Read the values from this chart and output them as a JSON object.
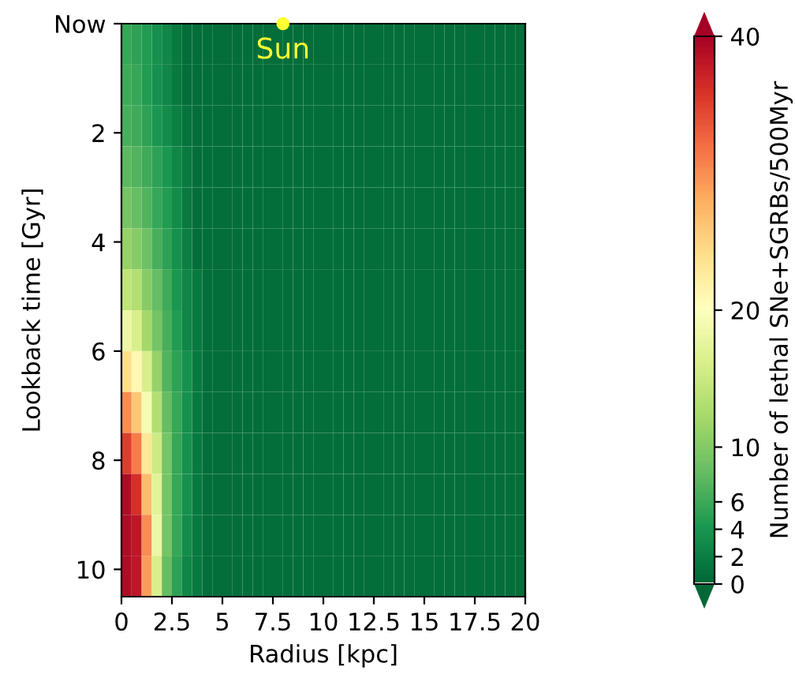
{
  "chart_data": {
    "type": "heatmap",
    "xlabel": "Radius [kpc]",
    "ylabel": "Lookback time [Gyr]",
    "clabel": "Number of lethal SNe+SGRBs/500Myr",
    "cells": [
      [
        5.5,
        5,
        4.5,
        3.5,
        2.5,
        1.5,
        0.5,
        0.5,
        0.5,
        0.5,
        0.5,
        0.5,
        0.5,
        0.5,
        0.5,
        0.5,
        0.5,
        0.5,
        0.5,
        0.5,
        0.5,
        0.5,
        0.5,
        0.5,
        0.5,
        0.5,
        0.5,
        0.5,
        0.5,
        0.5,
        0.5,
        0.5,
        0.5,
        0.5,
        0.5,
        0.5,
        0.5,
        0.5,
        0.5,
        0.5
      ],
      [
        6,
        5.5,
        4.5,
        3.5,
        2.5,
        1.5,
        0.5,
        0.5,
        0.5,
        0.5,
        0.5,
        0.5,
        0.5,
        0.5,
        0.5,
        0.5,
        0.5,
        0.5,
        0.5,
        0.5,
        0.5,
        0.5,
        0.5,
        0.5,
        0.5,
        0.5,
        0.5,
        0.5,
        0.5,
        0.5,
        0.5,
        0.5,
        0.5,
        0.5,
        0.5,
        0.5,
        0.5,
        0.5,
        0.5,
        0.5
      ],
      [
        6.5,
        6,
        5,
        4,
        3,
        2,
        1,
        0.5,
        0.5,
        0.5,
        0.5,
        0.5,
        0.5,
        0.5,
        0.5,
        0.5,
        0.5,
        0.5,
        0.5,
        0.5,
        0.5,
        0.5,
        0.5,
        0.5,
        0.5,
        0.5,
        0.5,
        0.5,
        0.5,
        0.5,
        0.5,
        0.5,
        0.5,
        0.5,
        0.5,
        0.5,
        0.5,
        0.5,
        0.5,
        0.5
      ],
      [
        7.5,
        7,
        6,
        5,
        4,
        2.5,
        1.5,
        0.5,
        0.5,
        0.5,
        0.5,
        0.5,
        0.5,
        0.5,
        0.5,
        0.5,
        0.5,
        0.5,
        0.5,
        0.5,
        0.5,
        0.5,
        0.5,
        0.5,
        0.5,
        0.5,
        0.5,
        0.5,
        0.5,
        0.5,
        0.5,
        0.5,
        0.5,
        0.5,
        0.5,
        0.5,
        0.5,
        0.5,
        0.5,
        0.5
      ],
      [
        9,
        8,
        7,
        5.5,
        4.5,
        3,
        1.5,
        0.5,
        0.5,
        0.5,
        0.5,
        0.5,
        0.5,
        0.5,
        0.5,
        0.5,
        0.5,
        0.5,
        0.5,
        0.5,
        0.5,
        0.5,
        0.5,
        0.5,
        0.5,
        0.5,
        0.5,
        0.5,
        0.5,
        0.5,
        0.5,
        0.5,
        0.5,
        0.5,
        0.5,
        0.5,
        0.5,
        0.5,
        0.5,
        0.5
      ],
      [
        11,
        10,
        8.5,
        6.5,
        5,
        3.5,
        2,
        0.5,
        0.5,
        0.5,
        0.5,
        0.5,
        0.5,
        0.5,
        0.5,
        0.5,
        0.5,
        0.5,
        0.5,
        0.5,
        0.5,
        0.5,
        0.5,
        0.5,
        0.5,
        0.5,
        0.5,
        0.5,
        0.5,
        0.5,
        0.5,
        0.5,
        0.5,
        0.5,
        0.5,
        0.5,
        0.5,
        0.5,
        0.5,
        0.5
      ],
      [
        14,
        13,
        10,
        8,
        6,
        4,
        2.5,
        1.5,
        0.5,
        0.5,
        0.5,
        0.5,
        0.5,
        0.5,
        0.5,
        0.5,
        0.5,
        0.5,
        0.5,
        0.5,
        0.5,
        0.5,
        0.5,
        0.5,
        0.5,
        0.5,
        0.5,
        0.5,
        0.5,
        0.5,
        0.5,
        0.5,
        0.5,
        0.5,
        0.5,
        0.5,
        0.5,
        0.5,
        0.5,
        0.5
      ],
      [
        18,
        16,
        12,
        9,
        6.5,
        4.5,
        2.5,
        1.5,
        0.5,
        0.5,
        0.5,
        0.5,
        0.5,
        0.5,
        0.5,
        0.5,
        0.5,
        0.5,
        0.5,
        0.5,
        0.5,
        0.5,
        0.5,
        0.5,
        0.5,
        0.5,
        0.5,
        0.5,
        0.5,
        0.5,
        0.5,
        0.5,
        0.5,
        0.5,
        0.5,
        0.5,
        0.5,
        0.5,
        0.5,
        0.5
      ],
      [
        24,
        21,
        16,
        11,
        7,
        5,
        3.5,
        1.5,
        0.5,
        0.5,
        0.5,
        0.5,
        0.5,
        0.5,
        0.5,
        0.5,
        0.5,
        0.5,
        0.5,
        0.5,
        0.5,
        0.5,
        0.5,
        0.5,
        0.5,
        0.5,
        0.5,
        0.5,
        0.5,
        0.5,
        0.5,
        0.5,
        0.5,
        0.5,
        0.5,
        0.5,
        0.5,
        0.5,
        0.5,
        0.5
      ],
      [
        30,
        26,
        19,
        13,
        8,
        5.5,
        3.5,
        1.5,
        0.5,
        0.5,
        0.5,
        0.5,
        0.5,
        0.5,
        0.5,
        0.5,
        0.5,
        0.5,
        0.5,
        0.5,
        0.5,
        0.5,
        0.5,
        0.5,
        0.5,
        0.5,
        0.5,
        0.5,
        0.5,
        0.5,
        0.5,
        0.5,
        0.5,
        0.5,
        0.5,
        0.5,
        0.5,
        0.5,
        0.5,
        0.5
      ],
      [
        35,
        31,
        23,
        15,
        9,
        5.5,
        3.5,
        1.5,
        0.5,
        0.5,
        0.5,
        0.5,
        0.5,
        0.5,
        0.5,
        0.5,
        0.5,
        0.5,
        0.5,
        0.5,
        0.5,
        0.5,
        0.5,
        0.5,
        0.5,
        0.5,
        0.5,
        0.5,
        0.5,
        0.5,
        0.5,
        0.5,
        0.5,
        0.5,
        0.5,
        0.5,
        0.5,
        0.5,
        0.5,
        0.5
      ],
      [
        39,
        36,
        27,
        17,
        9,
        5.5,
        3.5,
        1.5,
        0.5,
        0.5,
        0.5,
        0.5,
        0.5,
        0.5,
        0.5,
        0.5,
        0.5,
        0.5,
        0.5,
        0.5,
        0.5,
        0.5,
        0.5,
        0.5,
        0.5,
        0.5,
        0.5,
        0.5,
        0.5,
        0.5,
        0.5,
        0.5,
        0.5,
        0.5,
        0.5,
        0.5,
        0.5,
        0.5,
        0.5,
        0.5
      ],
      [
        39,
        38,
        30,
        18,
        9,
        5.5,
        3,
        1.5,
        0.5,
        0.5,
        0.5,
        0.5,
        0.5,
        0.5,
        0.5,
        0.5,
        0.5,
        0.5,
        0.5,
        0.5,
        0.5,
        0.5,
        0.5,
        0.5,
        0.5,
        0.5,
        0.5,
        0.5,
        0.5,
        0.5,
        0.5,
        0.5,
        0.5,
        0.5,
        0.5,
        0.5,
        0.5,
        0.5,
        0.5,
        0.5
      ],
      [
        39,
        38,
        29,
        16,
        8,
        5,
        2.5,
        1.5,
        0.5,
        0.5,
        0.5,
        0.5,
        0.5,
        0.5,
        0.5,
        0.5,
        0.5,
        0.5,
        0.5,
        0.5,
        0.5,
        0.5,
        0.5,
        0.5,
        0.5,
        0.5,
        0.5,
        0.5,
        0.5,
        0.5,
        0.5,
        0.5,
        0.5,
        0.5,
        0.5,
        0.5,
        0.5,
        0.5,
        0.5,
        0.5
      ]
    ],
    "clim": [
      0,
      40
    ],
    "cticks": [
      0,
      2,
      4,
      6,
      10,
      20,
      40
    ],
    "xlim": [
      0,
      20
    ],
    "xticks": [
      0,
      2.5,
      5,
      7.5,
      10,
      12.5,
      15,
      17.5,
      20
    ],
    "ylim": [
      10.5,
      0
    ],
    "yticks": [
      {
        "value": 0,
        "label": "Now"
      },
      2,
      4,
      6,
      8,
      10
    ],
    "annotations": [
      {
        "text": "Sun",
        "x": 8,
        "y": 0
      }
    ]
  }
}
